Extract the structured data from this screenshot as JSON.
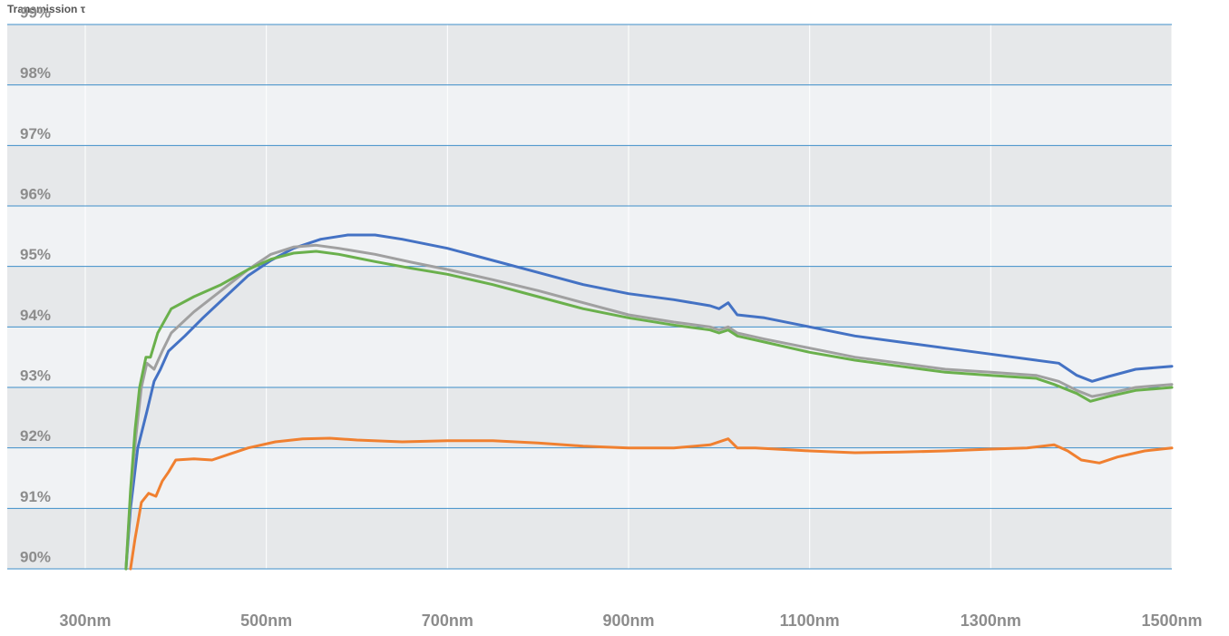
{
  "chart_data": {
    "type": "line",
    "ylabel": "Transmission τ",
    "xlabel": "",
    "xlim": [
      250,
      1500
    ],
    "ylim": [
      90,
      99
    ],
    "x_ticks": [
      300,
      500,
      700,
      900,
      1100,
      1300,
      1500
    ],
    "x_tick_labels": [
      "300nm",
      "500nm",
      "700nm",
      "900nm",
      "1100nm",
      "1300nm",
      "1500nm"
    ],
    "y_ticks": [
      90,
      91,
      92,
      93,
      94,
      95,
      96,
      97,
      98,
      99
    ],
    "y_tick_labels": [
      "90%",
      "91%",
      "92%",
      "93%",
      "94%",
      "95%",
      "96%",
      "97%",
      "98%",
      "99%"
    ],
    "grid": true,
    "legend": "none",
    "colors": {
      "band_dark": "#e6e8ea",
      "band_light": "#f0f2f4",
      "gridline": "#3d8ec9",
      "vgrid": "#ffffff",
      "tick_text": "#8c8c8c"
    },
    "series": [
      {
        "color": "#4472c4",
        "points": [
          [
            345,
            90
          ],
          [
            350,
            91
          ],
          [
            358,
            92
          ],
          [
            368,
            92.6
          ],
          [
            376,
            93.1
          ],
          [
            383,
            93.3
          ],
          [
            392,
            93.6
          ],
          [
            410,
            93.85
          ],
          [
            430,
            94.15
          ],
          [
            455,
            94.5
          ],
          [
            480,
            94.85
          ],
          [
            505,
            95.1
          ],
          [
            530,
            95.3
          ],
          [
            560,
            95.45
          ],
          [
            590,
            95.52
          ],
          [
            620,
            95.52
          ],
          [
            650,
            95.45
          ],
          [
            700,
            95.3
          ],
          [
            750,
            95.1
          ],
          [
            800,
            94.9
          ],
          [
            850,
            94.7
          ],
          [
            900,
            94.55
          ],
          [
            950,
            94.45
          ],
          [
            990,
            94.35
          ],
          [
            1000,
            94.3
          ],
          [
            1010,
            94.4
          ],
          [
            1020,
            94.2
          ],
          [
            1050,
            94.15
          ],
          [
            1100,
            94.0
          ],
          [
            1150,
            93.85
          ],
          [
            1200,
            93.75
          ],
          [
            1250,
            93.65
          ],
          [
            1300,
            93.55
          ],
          [
            1350,
            93.45
          ],
          [
            1375,
            93.4
          ],
          [
            1395,
            93.2
          ],
          [
            1412,
            93.1
          ],
          [
            1430,
            93.18
          ],
          [
            1460,
            93.3
          ],
          [
            1500,
            93.35
          ]
        ]
      },
      {
        "color": "#a0a0a0",
        "points": [
          [
            345,
            90
          ],
          [
            350,
            91.2
          ],
          [
            356,
            92.2
          ],
          [
            362,
            93
          ],
          [
            368,
            93.4
          ],
          [
            376,
            93.3
          ],
          [
            385,
            93.6
          ],
          [
            395,
            93.9
          ],
          [
            420,
            94.25
          ],
          [
            450,
            94.6
          ],
          [
            480,
            94.95
          ],
          [
            505,
            95.2
          ],
          [
            530,
            95.32
          ],
          [
            555,
            95.35
          ],
          [
            580,
            95.3
          ],
          [
            620,
            95.2
          ],
          [
            660,
            95.07
          ],
          [
            700,
            94.95
          ],
          [
            750,
            94.78
          ],
          [
            800,
            94.6
          ],
          [
            850,
            94.4
          ],
          [
            900,
            94.2
          ],
          [
            950,
            94.08
          ],
          [
            990,
            94.0
          ],
          [
            1000,
            93.95
          ],
          [
            1010,
            94.0
          ],
          [
            1020,
            93.9
          ],
          [
            1050,
            93.8
          ],
          [
            1100,
            93.65
          ],
          [
            1150,
            93.5
          ],
          [
            1200,
            93.4
          ],
          [
            1250,
            93.3
          ],
          [
            1300,
            93.25
          ],
          [
            1350,
            93.2
          ],
          [
            1375,
            93.1
          ],
          [
            1395,
            92.95
          ],
          [
            1412,
            92.85
          ],
          [
            1430,
            92.9
          ],
          [
            1460,
            93.0
          ],
          [
            1500,
            93.05
          ]
        ]
      },
      {
        "color": "#6ab04c",
        "points": [
          [
            345,
            90
          ],
          [
            350,
            91.3
          ],
          [
            355,
            92.3
          ],
          [
            360,
            93
          ],
          [
            367,
            93.5
          ],
          [
            372,
            93.5
          ],
          [
            380,
            93.9
          ],
          [
            395,
            94.3
          ],
          [
            420,
            94.5
          ],
          [
            450,
            94.7
          ],
          [
            480,
            94.95
          ],
          [
            505,
            95.12
          ],
          [
            530,
            95.22
          ],
          [
            555,
            95.25
          ],
          [
            580,
            95.2
          ],
          [
            620,
            95.08
          ],
          [
            660,
            94.97
          ],
          [
            700,
            94.87
          ],
          [
            750,
            94.7
          ],
          [
            800,
            94.5
          ],
          [
            850,
            94.3
          ],
          [
            900,
            94.15
          ],
          [
            950,
            94.03
          ],
          [
            990,
            93.95
          ],
          [
            1000,
            93.9
          ],
          [
            1010,
            93.95
          ],
          [
            1020,
            93.85
          ],
          [
            1050,
            93.75
          ],
          [
            1100,
            93.58
          ],
          [
            1150,
            93.45
          ],
          [
            1200,
            93.35
          ],
          [
            1250,
            93.25
          ],
          [
            1300,
            93.2
          ],
          [
            1350,
            93.15
          ],
          [
            1370,
            93.05
          ],
          [
            1395,
            92.9
          ],
          [
            1410,
            92.77
          ],
          [
            1430,
            92.85
          ],
          [
            1460,
            92.95
          ],
          [
            1500,
            93.0
          ]
        ]
      },
      {
        "color": "#f08030",
        "points": [
          [
            350,
            90
          ],
          [
            355,
            90.5
          ],
          [
            362,
            91.1
          ],
          [
            370,
            91.25
          ],
          [
            378,
            91.2
          ],
          [
            385,
            91.45
          ],
          [
            392,
            91.6
          ],
          [
            400,
            91.8
          ],
          [
            420,
            91.82
          ],
          [
            440,
            91.8
          ],
          [
            460,
            91.9
          ],
          [
            480,
            92.0
          ],
          [
            510,
            92.1
          ],
          [
            540,
            92.15
          ],
          [
            570,
            92.16
          ],
          [
            600,
            92.13
          ],
          [
            650,
            92.1
          ],
          [
            700,
            92.12
          ],
          [
            750,
            92.12
          ],
          [
            800,
            92.08
          ],
          [
            850,
            92.03
          ],
          [
            900,
            92.0
          ],
          [
            950,
            92.0
          ],
          [
            990,
            92.05
          ],
          [
            1010,
            92.15
          ],
          [
            1020,
            92.0
          ],
          [
            1040,
            92.0
          ],
          [
            1100,
            91.95
          ],
          [
            1150,
            91.92
          ],
          [
            1200,
            91.93
          ],
          [
            1250,
            91.95
          ],
          [
            1300,
            91.98
          ],
          [
            1340,
            92.0
          ],
          [
            1370,
            92.05
          ],
          [
            1385,
            91.95
          ],
          [
            1400,
            91.8
          ],
          [
            1420,
            91.75
          ],
          [
            1440,
            91.85
          ],
          [
            1470,
            91.95
          ],
          [
            1500,
            92.0
          ]
        ]
      }
    ]
  }
}
